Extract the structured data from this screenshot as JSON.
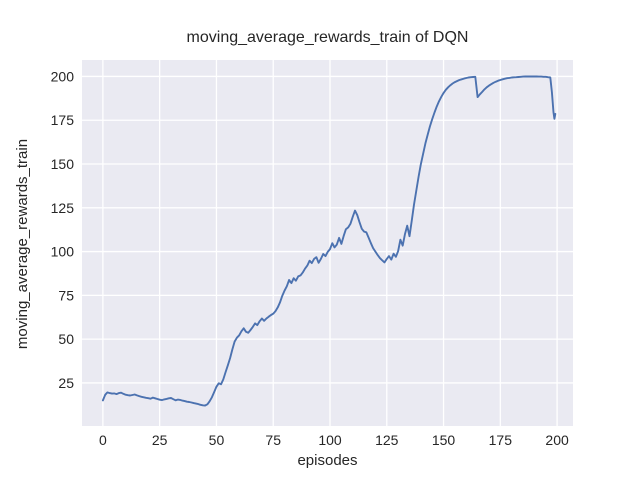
{
  "window": {
    "title": "moving_average_rewards_train of DQN"
  },
  "colors": {
    "figure_background": "#ffffff",
    "plot_background": "#eaeaf2",
    "grid": "#ffffff",
    "line": "#4c72b0",
    "text": "#262626"
  },
  "chart_data": {
    "type": "line",
    "title": "moving_average_rewards_train of DQN",
    "xlabel": "episodes",
    "ylabel": "moving_average_rewards_train",
    "legend": null,
    "grid": true,
    "x_ticks": [
      0,
      25,
      50,
      75,
      100,
      125,
      150,
      175,
      200
    ],
    "y_ticks": [
      25,
      50,
      75,
      100,
      125,
      150,
      175,
      200
    ],
    "xlim": [
      -9.2,
      207.0
    ],
    "ylim": [
      0.4,
      209.4
    ],
    "series": [
      {
        "name": "moving_average_rewards_train",
        "color": "#4c72b0",
        "points": [
          [
            0,
            15.0
          ],
          [
            1,
            18.2
          ],
          [
            2,
            19.6
          ],
          [
            3,
            19.2
          ],
          [
            4,
            18.9
          ],
          [
            5,
            19.0
          ],
          [
            6,
            18.6
          ],
          [
            7,
            19.2
          ],
          [
            8,
            19.4
          ],
          [
            9,
            18.8
          ],
          [
            10,
            18.3
          ],
          [
            11,
            18.0
          ],
          [
            12,
            17.8
          ],
          [
            13,
            18.1
          ],
          [
            14,
            18.4
          ],
          [
            15,
            17.9
          ],
          [
            16,
            17.5
          ],
          [
            17,
            17.1
          ],
          [
            18,
            16.8
          ],
          [
            19,
            16.5
          ],
          [
            20,
            16.3
          ],
          [
            21,
            16.0
          ],
          [
            22,
            16.6
          ],
          [
            23,
            16.2
          ],
          [
            24,
            15.8
          ],
          [
            25,
            15.4
          ],
          [
            26,
            15.2
          ],
          [
            27,
            15.6
          ],
          [
            28,
            15.9
          ],
          [
            29,
            16.2
          ],
          [
            30,
            16.4
          ],
          [
            31,
            15.7
          ],
          [
            32,
            15.1
          ],
          [
            33,
            15.5
          ],
          [
            34,
            15.3
          ],
          [
            35,
            14.9
          ],
          [
            36,
            14.6
          ],
          [
            37,
            14.3
          ],
          [
            38,
            14.1
          ],
          [
            39,
            13.8
          ],
          [
            40,
            13.5
          ],
          [
            41,
            13.2
          ],
          [
            42,
            12.9
          ],
          [
            43,
            12.5
          ],
          [
            44,
            12.2
          ],
          [
            45,
            12.1
          ],
          [
            46,
            12.8
          ],
          [
            47,
            14.5
          ],
          [
            48,
            16.8
          ],
          [
            49,
            19.8
          ],
          [
            50,
            22.8
          ],
          [
            51,
            24.8
          ],
          [
            52,
            24.2
          ],
          [
            53,
            27.0
          ],
          [
            54,
            31.0
          ],
          [
            55,
            35.0
          ],
          [
            56,
            39.2
          ],
          [
            57,
            44.0
          ],
          [
            58,
            48.6
          ],
          [
            59,
            50.8
          ],
          [
            60,
            52.2
          ],
          [
            61,
            54.5
          ],
          [
            62,
            56.2
          ],
          [
            63,
            54.2
          ],
          [
            64,
            53.6
          ],
          [
            65,
            55.2
          ],
          [
            66,
            57.0
          ],
          [
            67,
            59.0
          ],
          [
            68,
            58.0
          ],
          [
            69,
            60.2
          ],
          [
            70,
            61.8
          ],
          [
            71,
            60.5
          ],
          [
            72,
            61.8
          ],
          [
            73,
            62.8
          ],
          [
            74,
            63.8
          ],
          [
            75,
            64.5
          ],
          [
            76,
            66.0
          ],
          [
            77,
            68.2
          ],
          [
            78,
            71.0
          ],
          [
            79,
            74.8
          ],
          [
            80,
            77.8
          ],
          [
            81,
            80.2
          ],
          [
            82,
            83.8
          ],
          [
            83,
            82.0
          ],
          [
            84,
            84.8
          ],
          [
            85,
            83.4
          ],
          [
            86,
            85.8
          ],
          [
            87,
            86.4
          ],
          [
            88,
            88.0
          ],
          [
            89,
            90.2
          ],
          [
            90,
            92.0
          ],
          [
            91,
            94.8
          ],
          [
            92,
            93.4
          ],
          [
            93,
            95.8
          ],
          [
            94,
            96.8
          ],
          [
            95,
            93.6
          ],
          [
            96,
            95.8
          ],
          [
            97,
            98.6
          ],
          [
            98,
            97.4
          ],
          [
            99,
            99.8
          ],
          [
            100,
            101.4
          ],
          [
            101,
            104.8
          ],
          [
            102,
            102.4
          ],
          [
            103,
            104.0
          ],
          [
            104,
            107.8
          ],
          [
            105,
            104.4
          ],
          [
            106,
            108.8
          ],
          [
            107,
            112.8
          ],
          [
            108,
            113.8
          ],
          [
            109,
            115.8
          ],
          [
            110,
            119.8
          ],
          [
            111,
            123.4
          ],
          [
            112,
            120.8
          ],
          [
            113,
            116.8
          ],
          [
            114,
            113.0
          ],
          [
            115,
            111.4
          ],
          [
            116,
            111.0
          ],
          [
            117,
            108.0
          ],
          [
            118,
            104.8
          ],
          [
            119,
            102.0
          ],
          [
            120,
            100.0
          ],
          [
            121,
            98.0
          ],
          [
            122,
            96.2
          ],
          [
            123,
            95.0
          ],
          [
            124,
            93.8
          ],
          [
            125,
            95.8
          ],
          [
            126,
            97.4
          ],
          [
            127,
            95.4
          ],
          [
            128,
            98.8
          ],
          [
            129,
            97.0
          ],
          [
            130,
            100.2
          ],
          [
            131,
            106.8
          ],
          [
            132,
            103.4
          ],
          [
            133,
            109.8
          ],
          [
            134,
            114.8
          ],
          [
            135,
            108.8
          ],
          [
            136,
            117.8
          ],
          [
            137,
            126.8
          ],
          [
            138,
            134.8
          ],
          [
            139,
            142.8
          ],
          [
            140,
            149.8
          ],
          [
            141,
            155.8
          ],
          [
            142,
            161.8
          ],
          [
            143,
            166.8
          ],
          [
            144,
            171.4
          ],
          [
            145,
            175.6
          ],
          [
            146,
            179.4
          ],
          [
            147,
            182.8
          ],
          [
            148,
            185.8
          ],
          [
            149,
            188.4
          ],
          [
            150,
            190.6
          ],
          [
            151,
            192.4
          ],
          [
            152,
            193.8
          ],
          [
            153,
            195.0
          ],
          [
            154,
            196.0
          ],
          [
            155,
            196.8
          ],
          [
            156,
            197.4
          ],
          [
            157,
            198.0
          ],
          [
            158,
            198.4
          ],
          [
            159,
            198.8
          ],
          [
            160,
            199.1
          ],
          [
            161,
            199.4
          ],
          [
            162,
            199.6
          ],
          [
            163,
            199.7
          ],
          [
            164,
            199.8
          ],
          [
            165,
            188.2
          ],
          [
            166,
            189.8
          ],
          [
            167,
            191.2
          ],
          [
            168,
            192.6
          ],
          [
            169,
            193.8
          ],
          [
            170,
            194.8
          ],
          [
            171,
            195.6
          ],
          [
            172,
            196.4
          ],
          [
            173,
            197.0
          ],
          [
            174,
            197.6
          ],
          [
            175,
            198.0
          ],
          [
            176,
            198.4
          ],
          [
            177,
            198.7
          ],
          [
            178,
            199.0
          ],
          [
            179,
            199.2
          ],
          [
            180,
            199.4
          ],
          [
            181,
            199.5
          ],
          [
            182,
            199.6
          ],
          [
            183,
            199.7
          ],
          [
            184,
            199.8
          ],
          [
            185,
            199.9
          ],
          [
            186,
            200.0
          ],
          [
            187,
            200.0
          ],
          [
            188,
            200.0
          ],
          [
            189,
            200.0
          ],
          [
            190,
            200.0
          ],
          [
            191,
            200.0
          ],
          [
            192,
            199.9
          ],
          [
            193,
            199.9
          ],
          [
            194,
            199.8
          ],
          [
            195,
            199.8
          ],
          [
            196,
            199.6
          ],
          [
            197,
            199.4
          ],
          [
            197.7,
            191.0
          ],
          [
            198.4,
            179.5
          ],
          [
            198.8,
            175.8
          ],
          [
            199.2,
            178.6
          ]
        ]
      }
    ]
  }
}
